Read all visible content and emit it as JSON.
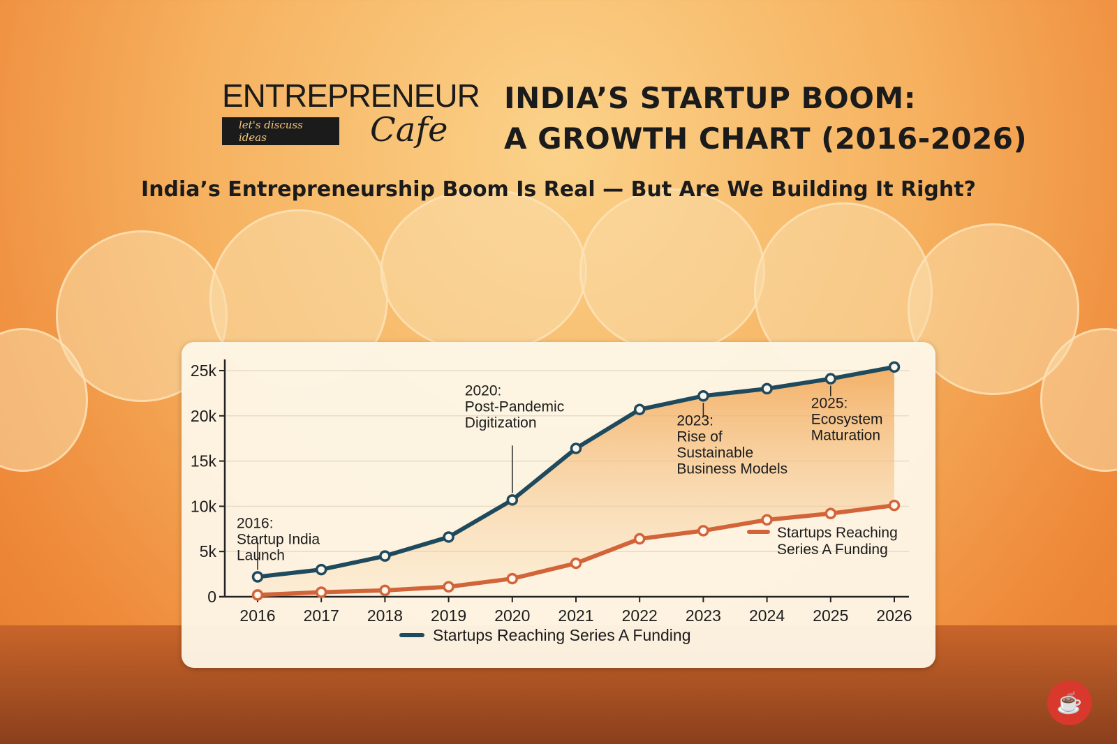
{
  "logo": {
    "word": "ENTREPRENEUR",
    "script": "Cafe",
    "tagline": "let's discuss ideas"
  },
  "title_line1": "INDIA’S STARTUP BOOM:",
  "title_line2": "A GROWTH CHART (2016-2026)",
  "subtitle": "India’s Entrepreneurship Boom Is Real — But Are We Building It Right?",
  "colors": {
    "blue_series": "#1f4a5e",
    "orange_series": "#d2643a",
    "background": "#f2a24f",
    "card": "#fdf6e6"
  },
  "chart_data": {
    "type": "line",
    "title": "",
    "xlabel": "",
    "ylabel": "",
    "x": [
      2016,
      2017,
      2018,
      2019,
      2020,
      2021,
      2022,
      2023,
      2024,
      2025,
      2026
    ],
    "ylim": [
      0,
      25000
    ],
    "yticks": [
      0,
      5000,
      10000,
      15000,
      20000,
      25000
    ],
    "ytick_labels": [
      "0",
      "5k",
      "10k",
      "15k",
      "20k",
      "25k"
    ],
    "grid": true,
    "series": [
      {
        "name": "Startups Reaching Series A Funding",
        "color": "#1f4a5e",
        "area_fill": true,
        "values": [
          2200,
          3000,
          4500,
          6600,
          10700,
          16400,
          20700,
          22200,
          23000,
          24100,
          25400
        ],
        "legend_placement": "bottom-center"
      },
      {
        "name": "Startups Reaching Series A Funding",
        "color": "#d2643a",
        "values": [
          200,
          500,
          700,
          1100,
          2000,
          3700,
          6400,
          7300,
          8500,
          9200,
          10100
        ],
        "legend_placement": "right"
      }
    ],
    "annotations": [
      {
        "x": 2016,
        "lines": [
          "2016:",
          "Startup India",
          "Launch"
        ]
      },
      {
        "x": 2020,
        "lines": [
          "2020:",
          "Post-Pandemic",
          "Digitization"
        ]
      },
      {
        "x": 2023,
        "lines": [
          "2023:",
          "Rise of",
          "Sustainable",
          "Business Models"
        ]
      },
      {
        "x": 2025,
        "lines": [
          "2025:",
          "Ecosystem",
          "Maturation"
        ]
      }
    ]
  }
}
